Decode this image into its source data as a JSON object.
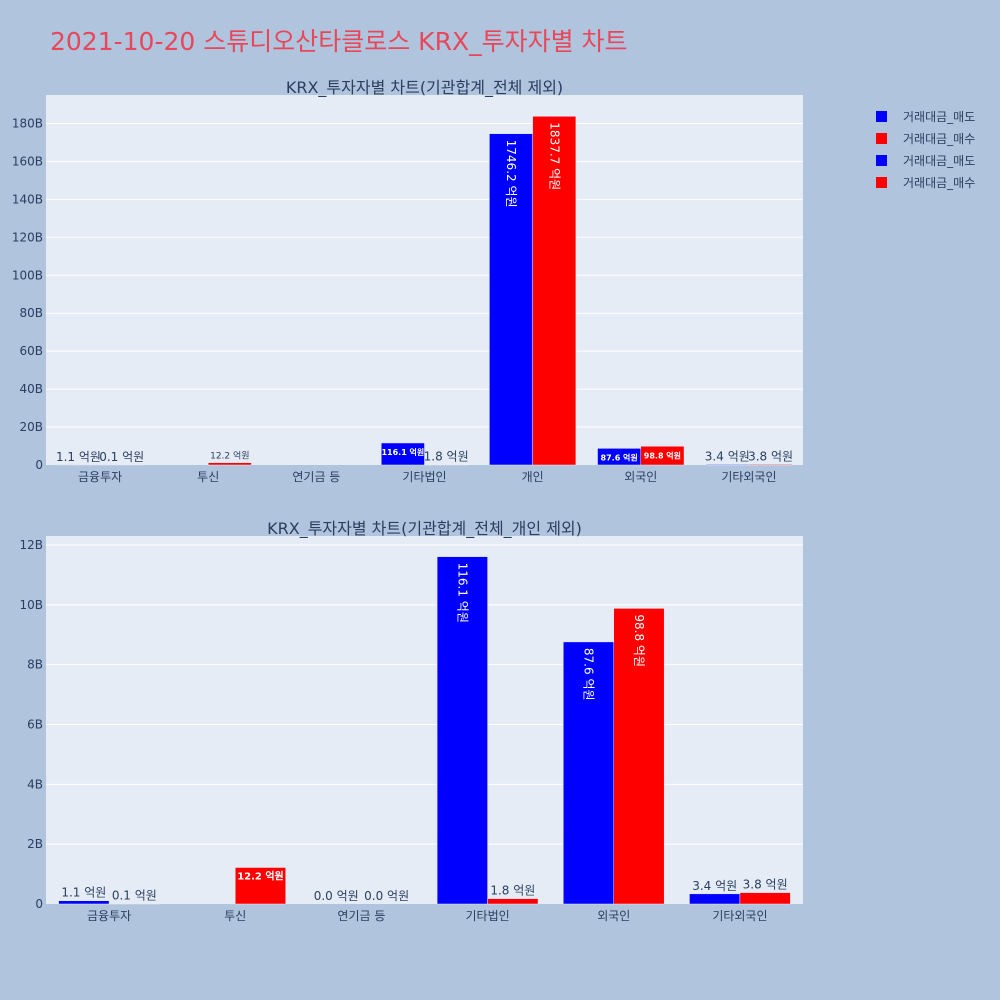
{
  "page_title": "2021-10-20 스튜디오산타클로스 KRX_투자자별 차트",
  "colors": {
    "sell": "#0000ff",
    "buy": "#ff0000",
    "plot_bg": "#e5ecf6",
    "page_bg": "#b0c4de",
    "title": "#e8475a"
  },
  "legend": [
    {
      "label": "거래대금_매도",
      "color": "#0000ff"
    },
    {
      "label": "거래대금_매수",
      "color": "#ff0000"
    },
    {
      "label": "거래대금_매도",
      "color": "#0000ff"
    },
    {
      "label": "거래대금_매수",
      "color": "#ff0000"
    }
  ],
  "chart_data": [
    {
      "type": "bar",
      "title": "KRX_투자자별 차트(기관합계_전체 제외)",
      "categories": [
        "금융투자",
        "투신",
        "연기금 등",
        "기타법인",
        "개인",
        "외국인",
        "기타외국인"
      ],
      "series": [
        {
          "name": "거래대금_매도",
          "values": [
            0.11,
            0,
            0,
            11.61,
            174.62,
            8.76,
            0.34
          ],
          "labels": [
            "1.1 억원",
            "",
            "",
            "116.1 억원",
            "1746.2 억원",
            "87.6 억원",
            "3.4 억원"
          ]
        },
        {
          "name": "거래대금_매수",
          "values": [
            0.01,
            1.22,
            0,
            0.18,
            183.77,
            9.88,
            0.38
          ],
          "labels": [
            "0.1 억원",
            "12.2 억원",
            "",
            "1.8 억원",
            "1837.7 억원",
            "98.8 억원",
            "3.8 억원"
          ]
        }
      ],
      "yticks": [
        "0",
        "20B",
        "40B",
        "60B",
        "80B",
        "100B",
        "120B",
        "140B",
        "160B",
        "180B"
      ],
      "ylim": [
        0,
        195
      ],
      "grid": true
    },
    {
      "type": "bar",
      "title": "KRX_투자자별 차트(기관합계_전체_개인 제외)",
      "categories": [
        "금융투자",
        "투신",
        "연기금 등",
        "기타법인",
        "외국인",
        "기타외국인"
      ],
      "series": [
        {
          "name": "거래대금_매도",
          "values": [
            0.11,
            0,
            0,
            11.61,
            8.76,
            0.34
          ],
          "labels": [
            "1.1 억원",
            "",
            "0.0 억원",
            "116.1 억원",
            "87.6 억원",
            "3.4 억원"
          ]
        },
        {
          "name": "거래대금_매수",
          "values": [
            0.01,
            1.22,
            0,
            0.18,
            9.88,
            0.38
          ],
          "labels": [
            "0.1 억원",
            "12.2 억원",
            "0.0 억원",
            "1.8 억원",
            "98.8 억원",
            "3.8 억원"
          ]
        }
      ],
      "yticks": [
        "0",
        "2B",
        "4B",
        "6B",
        "8B",
        "10B",
        "12B"
      ],
      "ylim": [
        0,
        12.3
      ],
      "grid": true
    }
  ]
}
